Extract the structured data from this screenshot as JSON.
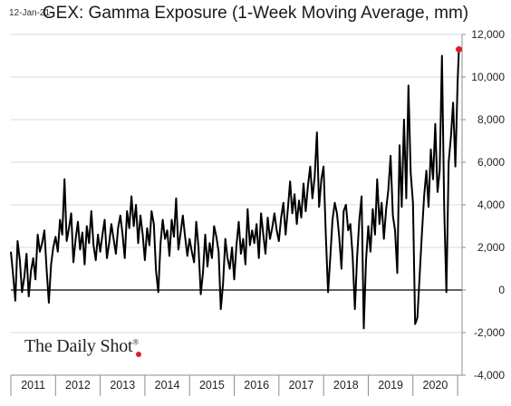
{
  "header": {
    "date_stamp": "12-Jan-21",
    "title": "GEX: Gamma Exposure (1-Week Moving Average, mm)"
  },
  "brand": {
    "name": "The Daily Shot",
    "mark": "®"
  },
  "colors": {
    "line": "#000000",
    "marker": "#e01b22",
    "grid": "#d9d9d9",
    "axis": "#8c8c8c"
  },
  "chart_data": {
    "type": "line",
    "title": "GEX: Gamma Exposure (1-Week Moving Average, mm)",
    "xlabel": "",
    "ylabel": "",
    "ylim": [
      -4000,
      12000
    ],
    "xlim": [
      2011.0,
      2021.1
    ],
    "y_ticks": [
      12000,
      10000,
      8000,
      6000,
      4000,
      2000,
      0,
      -2000,
      -4000
    ],
    "y_tick_labels": [
      "12,000",
      "10,000",
      "8,000",
      "6,000",
      "4,000",
      "2,000",
      "0",
      "-2,000",
      "-4,000"
    ],
    "x_tick_labels": [
      "2011",
      "2012",
      "2013",
      "2014",
      "2015",
      "2016",
      "2017",
      "2018",
      "2019",
      "2020"
    ],
    "grid": "horizontal",
    "y_axis_position": "right",
    "last_point": {
      "x": 2021.03,
      "y": 11300
    },
    "series": [
      {
        "x": [
          2011.0,
          2011.05,
          2011.1,
          2011.15,
          2011.2,
          2011.25,
          2011.3,
          2011.35,
          2011.4,
          2011.45,
          2011.5,
          2011.55,
          2011.6,
          2011.65,
          2011.7,
          2011.75,
          2011.8,
          2011.85,
          2011.9,
          2011.95,
          2012.0,
          2012.05,
          2012.1,
          2012.15,
          2012.2,
          2012.25,
          2012.3,
          2012.35,
          2012.4,
          2012.45,
          2012.5,
          2012.55,
          2012.6,
          2012.65,
          2012.7,
          2012.75,
          2012.8,
          2012.85,
          2012.9,
          2012.95,
          2013.0,
          2013.05,
          2013.1,
          2013.15,
          2013.2,
          2013.25,
          2013.3,
          2013.35,
          2013.4,
          2013.45,
          2013.5,
          2013.55,
          2013.6,
          2013.65,
          2013.7,
          2013.75,
          2013.8,
          2013.85,
          2013.9,
          2013.95,
          2014.0,
          2014.05,
          2014.1,
          2014.15,
          2014.2,
          2014.25,
          2014.3,
          2014.35,
          2014.4,
          2014.45,
          2014.5,
          2014.55,
          2014.6,
          2014.65,
          2014.7,
          2014.75,
          2014.8,
          2014.85,
          2014.9,
          2014.95,
          2015.0,
          2015.05,
          2015.1,
          2015.15,
          2015.2,
          2015.25,
          2015.3,
          2015.35,
          2015.4,
          2015.45,
          2015.5,
          2015.55,
          2015.6,
          2015.65,
          2015.7,
          2015.75,
          2015.8,
          2015.85,
          2015.9,
          2015.95,
          2016.0,
          2016.05,
          2016.1,
          2016.15,
          2016.2,
          2016.25,
          2016.3,
          2016.35,
          2016.4,
          2016.45,
          2016.5,
          2016.55,
          2016.6,
          2016.65,
          2016.7,
          2016.75,
          2016.8,
          2016.85,
          2016.9,
          2016.95,
          2017.0,
          2017.05,
          2017.1,
          2017.15,
          2017.2,
          2017.25,
          2017.3,
          2017.35,
          2017.4,
          2017.45,
          2017.5,
          2017.55,
          2017.6,
          2017.65,
          2017.7,
          2017.75,
          2017.8,
          2017.85,
          2017.9,
          2017.95,
          2018.0,
          2018.05,
          2018.1,
          2018.15,
          2018.2,
          2018.25,
          2018.3,
          2018.35,
          2018.4,
          2018.45,
          2018.5,
          2018.55,
          2018.6,
          2018.65,
          2018.7,
          2018.75,
          2018.8,
          2018.85,
          2018.9,
          2018.95,
          2019.0,
          2019.05,
          2019.1,
          2019.15,
          2019.2,
          2019.25,
          2019.3,
          2019.35,
          2019.4,
          2019.45,
          2019.5,
          2019.55,
          2019.6,
          2019.65,
          2019.7,
          2019.75,
          2019.8,
          2019.85,
          2019.9,
          2019.95,
          2020.0,
          2020.05,
          2020.1,
          2020.15,
          2020.2,
          2020.25,
          2020.3,
          2020.35,
          2020.4,
          2020.45,
          2020.5,
          2020.55,
          2020.6,
          2020.65,
          2020.7,
          2020.75,
          2020.8,
          2020.85,
          2020.9,
          2020.95,
          2021.0,
          2021.03
        ],
        "y": [
          1800,
          700,
          -500,
          2300,
          1400,
          -100,
          600,
          1700,
          -300,
          900,
          1500,
          500,
          2600,
          1800,
          2200,
          2800,
          1000,
          -600,
          1200,
          2000,
          2500,
          1800,
          3300,
          2600,
          5200,
          2300,
          2900,
          3600,
          1300,
          2400,
          3200,
          1900,
          2700,
          1200,
          3000,
          2200,
          3700,
          2100,
          1400,
          2600,
          1800,
          2600,
          3300,
          1500,
          2200,
          3100,
          2400,
          1700,
          2900,
          3500,
          2600,
          1500,
          3700,
          2900,
          4400,
          3000,
          4000,
          2200,
          3500,
          2600,
          1400,
          2900,
          2100,
          3700,
          3100,
          900,
          -100,
          2200,
          3300,
          2400,
          2800,
          1600,
          3300,
          2500,
          4300,
          1900,
          2700,
          3500,
          2500,
          1600,
          2400,
          1800,
          1300,
          3200,
          2000,
          -200,
          800,
          2600,
          1100,
          2200,
          1500,
          3000,
          2500,
          1800,
          -900,
          300,
          2400,
          1500,
          1000,
          2000,
          500,
          2100,
          3200,
          1700,
          2400,
          1200,
          3800,
          2100,
          2800,
          2200,
          3100,
          1500,
          3600,
          2600,
          1700,
          3400,
          2400,
          2900,
          3600,
          2800,
          2300,
          3400,
          4100,
          2600,
          3800,
          5100,
          3600,
          4500,
          3100,
          4200,
          3400,
          5000,
          3700,
          4900,
          5800,
          4300,
          5300,
          7400,
          3900,
          5200,
          5800,
          2600,
          -100,
          1500,
          3300,
          4100,
          3600,
          2500,
          1000,
          3700,
          4000,
          2800,
          3100,
          1600,
          -900,
          1500,
          3300,
          4400,
          -1800,
          1400,
          3000,
          1800,
          3800,
          2600,
          5200,
          3100,
          4100,
          2400,
          3800,
          4700,
          6300,
          3500,
          2800,
          800,
          6800,
          3900,
          8000,
          4300,
          9600,
          5500,
          4100,
          -1600,
          -1300,
          700,
          2600,
          4400,
          5600,
          3900,
          6600,
          5200,
          7800,
          4600,
          5600,
          11000,
          3800,
          -100,
          6000,
          7200,
          8800,
          5800,
          9800,
          11300
        ]
      }
    ]
  }
}
